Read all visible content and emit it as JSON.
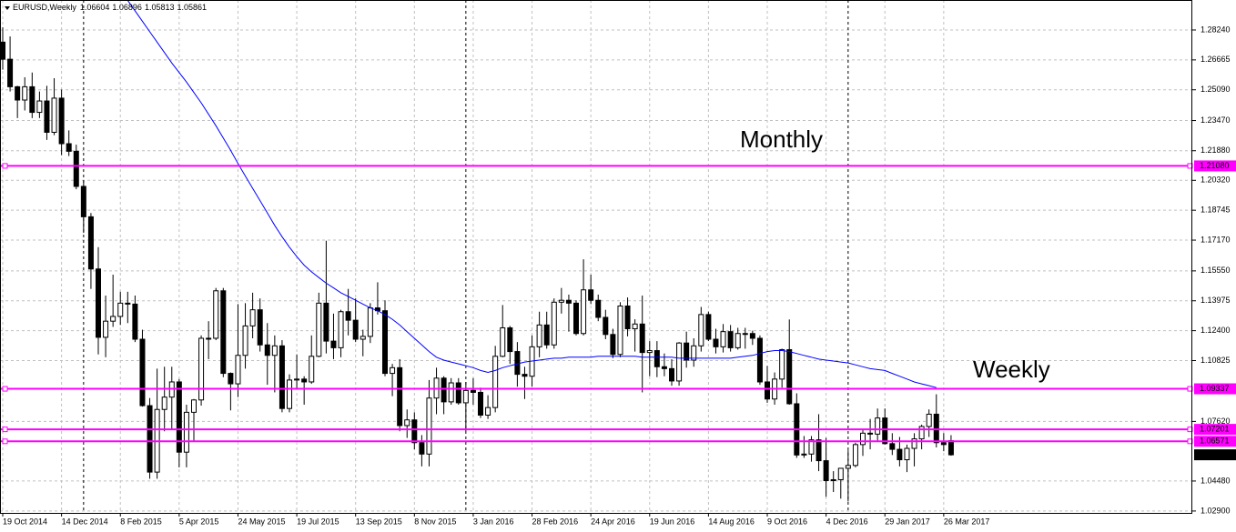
{
  "chart_data": {
    "type": "candlestick",
    "title": "EURUSD,Weekly",
    "categories": [
      "19 Oct 2014",
      null,
      null,
      null,
      null,
      null,
      null,
      null,
      "14 Dec 2014",
      null,
      null,
      null,
      null,
      null,
      null,
      null,
      "8 Feb 2015",
      null,
      null,
      null,
      null,
      null,
      null,
      null,
      "5 Apr 2015",
      null,
      null,
      null,
      null,
      null,
      null,
      null,
      "24 May 2015",
      null,
      null,
      null,
      null,
      null,
      null,
      null,
      "19 Jul 2015",
      null,
      null,
      null,
      null,
      null,
      null,
      null,
      "13 Sep 2015",
      null,
      null,
      null,
      null,
      null,
      null,
      null,
      "8 Nov 2015",
      null,
      null,
      null,
      null,
      null,
      null,
      null,
      "3 Jan 2016",
      null,
      null,
      null,
      null,
      null,
      null,
      null,
      "28 Feb 2016",
      null,
      null,
      null,
      null,
      null,
      null,
      null,
      "24 Apr 2016",
      null,
      null,
      null,
      null,
      null,
      null,
      null,
      "19 Jun 2016",
      null,
      null,
      null,
      null,
      null,
      null,
      null,
      "14 Aug 2016",
      null,
      null,
      null,
      null,
      null,
      null,
      null,
      "9 Oct 2016",
      null,
      null,
      null,
      null,
      null,
      null,
      null,
      "4 Dec 2016",
      null,
      null,
      null,
      null,
      null,
      null,
      null,
      "29 Jan 2017",
      null,
      null,
      null,
      null,
      null,
      null,
      null,
      "26 Mar 2017",
      null
    ],
    "open": [
      1.276,
      1.267,
      1.2525,
      1.2455,
      1.2525,
      1.239,
      1.245,
      1.2285,
      1.2465,
      1.2225,
      1.2185,
      1.2,
      1.184,
      1.1565,
      1.1205,
      1.129,
      1.1315,
      1.1385,
      1.138,
      1.1195,
      1.0845,
      1.0495,
      1.0825,
      1.089,
      1.097,
      1.06,
      1.081,
      1.0875,
      1.12,
      1.12,
      1.145,
      1.1015,
      1.096,
      1.111,
      1.1265,
      1.135,
      1.1165,
      1.111,
      1.116,
      1.083,
      1.098,
      1.0985,
      1.097,
      1.1105,
      1.1385,
      1.1185,
      1.115,
      1.134,
      1.1295,
      1.1195,
      1.121,
      1.136,
      1.1345,
      1.1015,
      1.1045,
      1.074,
      1.077,
      1.065,
      1.059,
      1.0885,
      1.099,
      1.0865,
      1.0965,
      1.086,
      1.0925,
      1.0915,
      1.0795,
      1.0835,
      1.1105,
      1.1255,
      1.113,
      1.101,
      1.1,
      1.1155,
      1.127,
      1.1165,
      1.139,
      1.14,
      1.1385,
      1.1225,
      1.1455,
      1.14,
      1.131,
      1.122,
      1.1115,
      1.137,
      1.125,
      1.1275,
      1.1125,
      1.1135,
      1.105,
      1.104,
      1.0975,
      1.1175,
      1.1085,
      1.116,
      1.1325,
      1.1195,
      1.1155,
      1.1235,
      1.115,
      1.1225,
      1.1225,
      1.12,
      1.097,
      1.088,
      1.0985,
      1.114,
      1.0855,
      1.0585,
      1.059,
      1.0665,
      1.0555,
      1.045,
      1.0455,
      1.0515,
      1.053,
      1.064,
      1.07,
      1.0695,
      1.078,
      1.0645,
      1.0615,
      1.056,
      1.062,
      1.067,
      1.0735,
      1.08,
      1.065,
      1.06604
    ],
    "high": [
      1.2838,
      1.279,
      1.253,
      1.2575,
      1.26,
      1.25,
      1.253,
      1.257,
      1.251,
      1.2295,
      1.222,
      1.203,
      1.186,
      1.168,
      1.1425,
      1.1535,
      1.1445,
      1.1445,
      1.1425,
      1.1245,
      1.0885,
      1.104,
      1.105,
      1.105,
      1.0985,
      1.085,
      1.088,
      1.1215,
      1.129,
      1.1465,
      1.1465,
      1.102,
      1.138,
      1.1385,
      1.144,
      1.141,
      1.128,
      1.1215,
      1.119,
      1.101,
      1.1115,
      1.1,
      1.1215,
      1.144,
      1.1714,
      1.133,
      1.135,
      1.146,
      1.141,
      1.1245,
      1.1385,
      1.1495,
      1.14,
      1.1065,
      1.109,
      1.0825,
      1.081,
      1.069,
      1.098,
      1.1045,
      1.1,
      1.099,
      1.099,
      1.097,
      1.099,
      1.094,
      1.09,
      1.116,
      1.1375,
      1.1265,
      1.118,
      1.105,
      1.1215,
      1.134,
      1.134,
      1.141,
      1.1465,
      1.143,
      1.14,
      1.1616,
      1.1535,
      1.143,
      1.135,
      1.125,
      1.139,
      1.1415,
      1.13,
      1.1425,
      1.1185,
      1.1185,
      1.112,
      1.109,
      1.118,
      1.1235,
      1.12,
      1.1365,
      1.134,
      1.125,
      1.1275,
      1.127,
      1.1255,
      1.1255,
      1.124,
      1.1215,
      1.1055,
      1.102,
      1.1145,
      1.1299,
      1.091,
      1.0685,
      1.0685,
      1.08,
      1.0675,
      1.05,
      1.0505,
      1.061,
      1.065,
      1.072,
      1.0775,
      1.083,
      1.083,
      1.07,
      1.068,
      1.064,
      1.07,
      1.0745,
      1.0825,
      1.0905,
      1.07,
      1.06896
    ],
    "low": [
      1.2615,
      1.25,
      1.236,
      1.24,
      1.236,
      1.236,
      1.2245,
      1.227,
      1.2165,
      1.216,
      1.1985,
      1.1755,
      1.146,
      1.1115,
      1.11,
      1.126,
      1.127,
      1.128,
      1.118,
      1.084,
      1.046,
      1.046,
      1.071,
      1.072,
      1.052,
      1.052,
      1.066,
      1.0845,
      1.109,
      1.119,
      1.0995,
      1.082,
      1.089,
      1.104,
      1.12,
      1.113,
      1.0955,
      1.0915,
      1.081,
      1.081,
      1.093,
      1.085,
      1.096,
      1.11,
      1.112,
      1.109,
      1.11,
      1.1215,
      1.118,
      1.1105,
      1.1175,
      1.1325,
      1.1,
      1.0895,
      1.071,
      1.0675,
      1.0615,
      1.0525,
      1.0525,
      1.08,
      1.08,
      1.085,
      1.085,
      1.071,
      1.085,
      1.078,
      1.0775,
      1.081,
      1.11,
      1.1065,
      1.0945,
      1.088,
      1.0945,
      1.11,
      1.1145,
      1.1145,
      1.133,
      1.1235,
      1.1215,
      1.1215,
      1.138,
      1.129,
      1.1195,
      1.1095,
      1.11,
      1.121,
      1.113,
      1.0915,
      1.1,
      1.0995,
      1.1,
      1.095,
      1.095,
      1.1045,
      1.105,
      1.113,
      1.1185,
      1.112,
      1.1125,
      1.113,
      1.114,
      1.1145,
      1.1165,
      1.0955,
      1.086,
      1.085,
      1.094,
      1.085,
      1.057,
      1.057,
      1.055,
      1.05,
      1.0365,
      1.039,
      1.0355,
      1.034,
      1.052,
      1.058,
      1.0615,
      1.0655,
      1.064,
      1.0585,
      1.0525,
      1.0495,
      1.0525,
      1.0615,
      1.068,
      1.0625,
      1.0605,
      1.05813
    ],
    "close": [
      1.267,
      1.2525,
      1.2455,
      1.2525,
      1.239,
      1.245,
      1.2285,
      1.2465,
      1.2225,
      1.2185,
      1.2,
      1.184,
      1.1565,
      1.1205,
      1.129,
      1.1315,
      1.1385,
      1.138,
      1.1195,
      1.0845,
      1.0495,
      1.0825,
      1.089,
      1.097,
      1.06,
      1.081,
      1.0875,
      1.12,
      1.12,
      1.145,
      1.1015,
      1.096,
      1.111,
      1.1265,
      1.135,
      1.1165,
      1.111,
      1.116,
      1.083,
      1.098,
      1.0985,
      1.097,
      1.1105,
      1.1385,
      1.1185,
      1.115,
      1.134,
      1.1295,
      1.1195,
      1.121,
      1.136,
      1.1345,
      1.1015,
      1.1045,
      1.074,
      1.077,
      1.065,
      1.059,
      1.0885,
      1.099,
      1.0865,
      1.0965,
      1.086,
      1.0925,
      1.0915,
      1.0795,
      1.0835,
      1.1105,
      1.1255,
      1.113,
      1.101,
      1.1,
      1.1155,
      1.127,
      1.1165,
      1.139,
      1.14,
      1.1385,
      1.1225,
      1.1455,
      1.14,
      1.131,
      1.122,
      1.1115,
      1.137,
      1.125,
      1.1275,
      1.1125,
      1.1135,
      1.105,
      1.104,
      1.0975,
      1.1175,
      1.1085,
      1.116,
      1.1325,
      1.1195,
      1.1155,
      1.1235,
      1.115,
      1.1225,
      1.1225,
      1.12,
      1.097,
      1.088,
      1.0985,
      1.114,
      1.0855,
      1.0585,
      1.059,
      1.0665,
      1.0555,
      1.045,
      1.0455,
      1.0515,
      1.053,
      1.064,
      1.07,
      1.0695,
      1.078,
      1.0645,
      1.0615,
      1.056,
      1.062,
      1.067,
      1.0735,
      1.08,
      1.065,
      1.064,
      1.05861
    ],
    "up_color": "#ffffff",
    "down_color": "#000000",
    "moving_average": {
      "color": "#0000ff",
      "values": [
        null,
        null,
        null,
        null,
        null,
        null,
        null,
        null,
        null,
        null,
        null,
        null,
        null,
        null,
        null,
        null,
        null,
        1.298,
        1.2925,
        1.287,
        1.2815,
        1.276,
        1.2705,
        1.265,
        1.26,
        1.255,
        1.2495,
        1.244,
        1.238,
        1.232,
        1.2255,
        1.219,
        1.212,
        1.2055,
        1.199,
        1.1925,
        1.186,
        1.1795,
        1.1735,
        1.168,
        1.163,
        1.1585,
        1.155,
        1.152,
        1.149,
        1.1465,
        1.144,
        1.142,
        1.14,
        1.138,
        1.136,
        1.1345,
        1.1325,
        1.13,
        1.127,
        1.1235,
        1.12,
        1.1165,
        1.113,
        1.11,
        1.1085,
        1.1075,
        1.1065,
        1.1055,
        1.1045,
        1.103,
        1.102,
        1.103,
        1.1045,
        1.1055,
        1.1065,
        1.1075,
        1.108,
        1.1085,
        1.109,
        1.1095,
        1.1095,
        1.11,
        1.11,
        1.11,
        1.11,
        1.1105,
        1.1105,
        1.1105,
        1.1105,
        1.1105,
        1.1105,
        1.11,
        1.11,
        1.11,
        1.11,
        1.11,
        1.1095,
        1.1095,
        1.1095,
        1.1095,
        1.1095,
        1.1095,
        1.1095,
        1.1095,
        1.11,
        1.1105,
        1.111,
        1.112,
        1.113,
        1.1135,
        1.1135,
        1.113,
        1.112,
        1.111,
        1.11,
        1.109,
        1.1085,
        1.108,
        1.1075,
        1.107,
        1.106,
        1.105,
        1.104,
        1.1035,
        1.103,
        1.1015,
        1.1,
        1.0985,
        1.097,
        1.096,
        1.095,
        1.094,
        null,
        null
      ]
    },
    "horizontal_lines": {
      "color": "#ff00ff",
      "levels": [
        {
          "value": 1.2108,
          "label": "1.21080"
        },
        {
          "value": 1.09337,
          "label": "1.09337"
        },
        {
          "value": 1.07201,
          "label": "1.07201"
        },
        {
          "value": 1.06571,
          "label": "1.06571"
        }
      ]
    },
    "last_price": {
      "value": 1.05861,
      "label": "1.05861"
    },
    "annotations": [
      {
        "text": "Monthly",
        "color": "#000000"
      },
      {
        "text": "Weekly",
        "color": "#e3242b"
      }
    ],
    "ylim": [
      1.028,
      1.2982
    ],
    "yticks": [
      {
        "value": 1.2824,
        "label": "1.28240"
      },
      {
        "value": 1.26665,
        "label": "1.26665"
      },
      {
        "value": 1.2509,
        "label": "1.25090"
      },
      {
        "value": 1.2347,
        "label": "1.23470"
      },
      {
        "value": 1.2188,
        "label": "1.21880"
      },
      {
        "value": 1.2032,
        "label": "1.20320"
      },
      {
        "value": 1.18745,
        "label": "1.18745"
      },
      {
        "value": 1.1717,
        "label": "1.17170"
      },
      {
        "value": 1.1555,
        "label": "1.15550"
      },
      {
        "value": 1.13975,
        "label": "1.13975"
      },
      {
        "value": 1.124,
        "label": "1.12400"
      },
      {
        "value": 1.10825,
        "label": "1.10825"
      },
      {
        "value": 1.0762,
        "label": "1.07620"
      },
      {
        "value": 1.0448,
        "label": "1.04480"
      },
      {
        "value": 1.029,
        "label": "1.02900"
      }
    ],
    "grid": true
  }
}
